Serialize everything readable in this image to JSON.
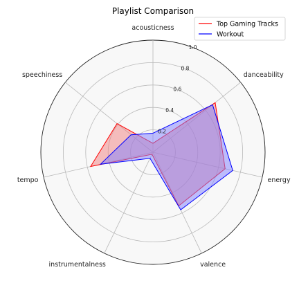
{
  "chart_data": {
    "type": "radar",
    "title": "Playlist Comparison",
    "categories": [
      "acousticness",
      "danceability",
      "energy",
      "valence",
      "instrumentalness",
      "tempo",
      "speechiness"
    ],
    "radial_ticks": [
      "0.2",
      "0.4",
      "0.6",
      "0.8",
      "1.0"
    ],
    "radial_tick_values": [
      0.2,
      0.4,
      0.6,
      0.8,
      1.0
    ],
    "rlim": [
      0,
      1.0
    ],
    "grid": true,
    "legend_position": "top-right",
    "series": [
      {
        "name": "Top Gaming Tracks",
        "color": "#ff0000",
        "fill": "#f08080",
        "values": [
          0.08,
          0.71,
          0.66,
          0.53,
          0.02,
          0.57,
          0.41
        ]
      },
      {
        "name": "Workout",
        "color": "#0000ff",
        "fill": "#8080ff",
        "values": [
          0.17,
          0.68,
          0.73,
          0.57,
          0.06,
          0.48,
          0.25
        ]
      }
    ]
  }
}
